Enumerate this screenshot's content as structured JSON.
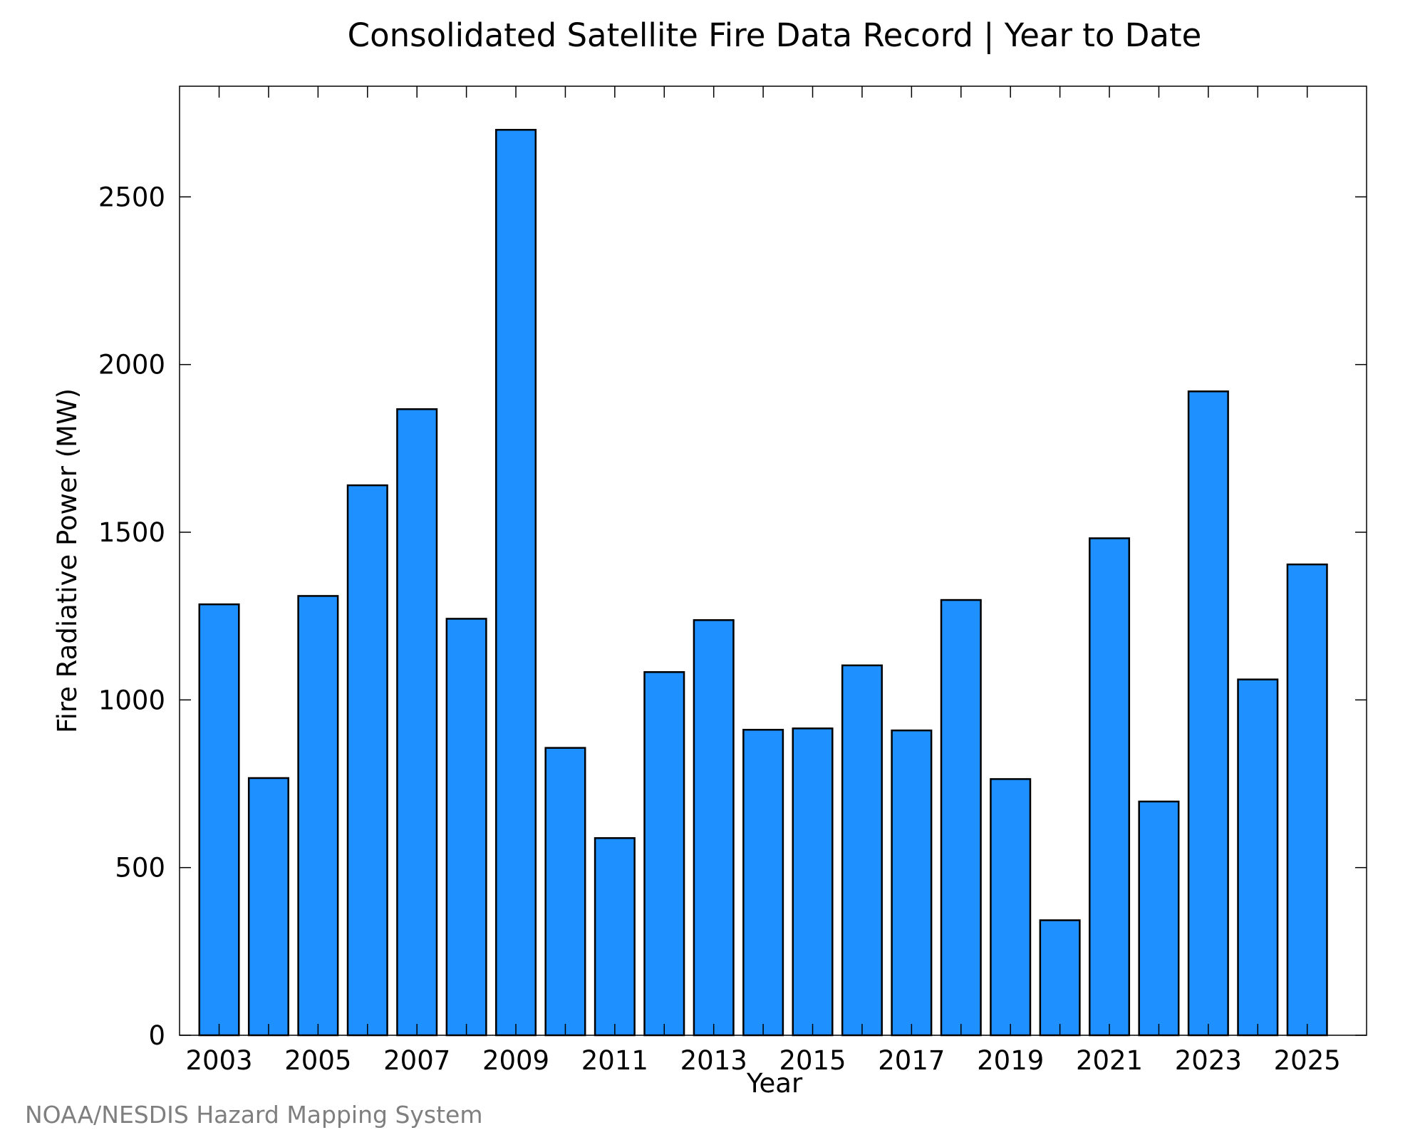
{
  "chart_data": {
    "type": "bar",
    "title": "Consolidated Satellite Fire Data Record | Year to Date",
    "xlabel": "Year",
    "ylabel": "Fire Radiative Power (MW)",
    "credit": "NOAA/NESDIS Hazard Mapping System",
    "bar_color": "#1e90ff",
    "bar_edge_color": "#000000",
    "xlim": [
      2002.2,
      2026.2
    ],
    "ylim": [
      0,
      2830
    ],
    "yticks": [
      0,
      500,
      1000,
      1500,
      2000,
      2500
    ],
    "ytick_labels": [
      "0",
      "500",
      "1000",
      "1500",
      "2000",
      "2500"
    ],
    "xticks": [
      2003,
      2005,
      2007,
      2009,
      2011,
      2013,
      2015,
      2017,
      2019,
      2021,
      2023,
      2025
    ],
    "xtick_labels": [
      "2003",
      "2005",
      "2007",
      "2009",
      "2011",
      "2013",
      "2015",
      "2017",
      "2019",
      "2021",
      "2023",
      "2025"
    ],
    "minor_xticks": [
      2004,
      2006,
      2008,
      2010,
      2012,
      2014,
      2016,
      2018,
      2020,
      2022,
      2024
    ],
    "grid": false,
    "categories": [
      "2003",
      "2004",
      "2005",
      "2006",
      "2007",
      "2008",
      "2009",
      "2010",
      "2011",
      "2012",
      "2013",
      "2014",
      "2015",
      "2016",
      "2017",
      "2018",
      "2019",
      "2020",
      "2021",
      "2022",
      "2023",
      "2024",
      "2025"
    ],
    "values": [
      1285,
      767,
      1310,
      1640,
      1867,
      1242,
      2700,
      857,
      588,
      1083,
      1238,
      911,
      915,
      1103,
      909,
      1298,
      764,
      343,
      1482,
      697,
      1920,
      1061,
      1404
    ]
  }
}
